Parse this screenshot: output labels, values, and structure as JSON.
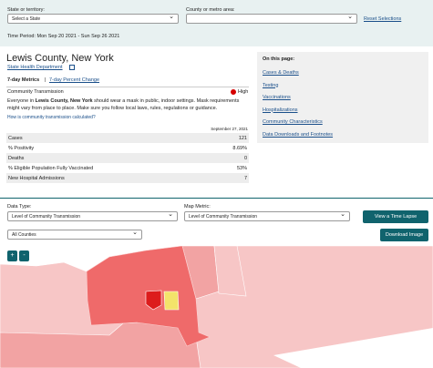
{
  "filters": {
    "state_label": "State or territory:",
    "state_value": "Select a State",
    "county_label": "County or metro area:",
    "reset": "Reset Selections",
    "time_period": "Time Period: Mon Sep 20 2021 - Sun Sep 26 2021"
  },
  "summary": {
    "title": "Lewis County, New York",
    "health_link": "State Health Department",
    "tab_active": "7-day Metrics",
    "tab_separator": "|",
    "tab_other": "7-day Percent Change",
    "transmission_label": "Community Transmission",
    "transmission_level": "High",
    "message_before": "Everyone in",
    "message_bold": "Lewis County, New York",
    "message_after": "should wear a mask in public, indoor settings. Mask requirements might vary from place to place. Make sure you follow local laws, rules, regulations or guidance.",
    "how_link": "How is community transmission calculated?",
    "date": "September 27, 2021"
  },
  "table": {
    "rows": [
      [
        "Cases",
        "121"
      ],
      [
        "% Positivity",
        "8.69%"
      ],
      [
        "Deaths",
        "0"
      ],
      [
        "% Eligible Population Fully Vaccinated",
        "53%"
      ],
      [
        "New Hospital Admissions",
        "7"
      ]
    ]
  },
  "on_this_page": {
    "title": "On this page:",
    "links": [
      "Cases & Deaths",
      "Testing",
      "Vaccinations",
      "Hospitalizations",
      "Community Characteristics",
      "Data Downloads and Footnotes"
    ]
  },
  "controls": {
    "data_type_label": "Data Type:",
    "data_type_value": "Level of Community Transmission",
    "map_metric_label": "Map Metric:",
    "map_metric_value": "Level of Community Transmission",
    "time_lapse": "View a Time Lapse",
    "counties_value": "All Counties",
    "download": "Download Image",
    "zoom_in": "+",
    "zoom_out": "-"
  }
}
